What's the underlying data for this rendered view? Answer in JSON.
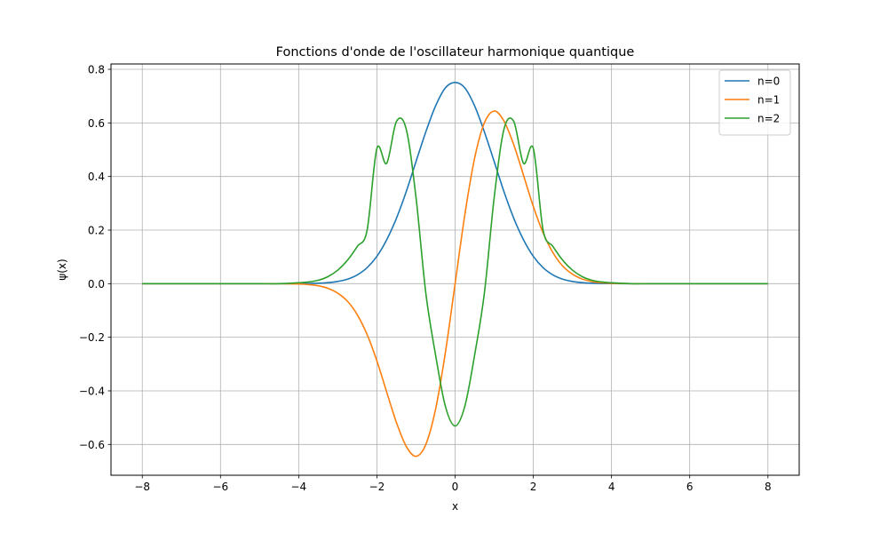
{
  "chart_data": {
    "type": "line",
    "title": "Fonctions d'onde de l'oscillateur harmonique quantique",
    "xlabel": "x",
    "ylabel": "ψ(x)",
    "xlim": [
      -8.8,
      8.8
    ],
    "ylim": [
      -0.715,
      0.82
    ],
    "xticks": [
      -8,
      -6,
      -4,
      -2,
      0,
      2,
      4,
      6,
      8
    ],
    "xtick_labels": [
      "−8",
      "−6",
      "−4",
      "−2",
      "0",
      "2",
      "4",
      "6",
      "8"
    ],
    "yticks": [
      -0.6,
      -0.4,
      -0.2,
      0.0,
      0.2,
      0.4,
      0.6,
      0.8
    ],
    "ytick_labels": [
      "−0.6",
      "−0.4",
      "−0.2",
      "0.0",
      "0.2",
      "0.4",
      "0.6",
      "0.8"
    ],
    "grid": true,
    "legend_position": "top-right",
    "x": [
      -8.0,
      -7.0,
      -6.0,
      -5.0,
      -4.5,
      -4.0,
      -3.75,
      -3.5,
      -3.25,
      -3.0,
      -2.75,
      -2.5,
      -2.25,
      -2.0,
      -1.75,
      -1.5,
      -1.25,
      -1.0,
      -0.75,
      -0.5,
      -0.25,
      0.0,
      0.25,
      0.5,
      0.75,
      1.0,
      1.25,
      1.5,
      1.75,
      2.0,
      2.25,
      2.5,
      2.75,
      3.0,
      3.25,
      3.5,
      3.75,
      4.0,
      4.5,
      5.0,
      6.0,
      7.0,
      8.0
    ],
    "series": [
      {
        "name": "n=0",
        "color": "#1f77b4",
        "values": [
          0.0,
          0.0,
          0.0,
          0.0,
          0.0,
          0.0003,
          0.0006,
          0.0016,
          0.0038,
          0.0084,
          0.017,
          0.0329,
          0.0597,
          0.1019,
          0.1634,
          0.2443,
          0.3434,
          0.4556,
          0.5661,
          0.6632,
          0.7306,
          0.7511,
          0.7306,
          0.6632,
          0.5661,
          0.4556,
          0.3434,
          0.2443,
          0.1634,
          0.1019,
          0.0597,
          0.0329,
          0.017,
          0.0084,
          0.0038,
          0.0016,
          0.0006,
          0.0003,
          0.0,
          0.0,
          0.0,
          0.0,
          0.0
        ]
      },
      {
        "name": "n=1",
        "color": "#ff7f0e",
        "values": [
          0.0,
          0.0,
          0.0,
          0.0,
          -0.0001,
          -0.0014,
          -0.0032,
          -0.0078,
          -0.0175,
          -0.0357,
          -0.0661,
          -0.1163,
          -0.19,
          -0.2882,
          -0.4044,
          -0.5183,
          -0.607,
          -0.6443,
          -0.6005,
          -0.469,
          -0.2583,
          0.0,
          0.2583,
          0.469,
          0.6005,
          0.6443,
          0.607,
          0.5183,
          0.4044,
          0.2882,
          0.19,
          0.1163,
          0.0661,
          0.0357,
          0.0175,
          0.0078,
          0.0032,
          0.0014,
          0.0001,
          0.0,
          0.0,
          0.0,
          0.0
        ]
      },
      {
        "name": "n=2",
        "color": "#2ca02c",
        "values": [
          0.0,
          0.0,
          0.0,
          0.0,
          0.0,
          0.0035,
          0.0062,
          0.0127,
          0.0264,
          0.0506,
          0.088,
          0.1395,
          0.1998,
          0.5045,
          0.449,
          0.6055,
          0.5765,
          0.3221,
          -0.0338,
          -0.2656,
          -0.4566,
          -0.5311,
          -0.4566,
          -0.2656,
          -0.0338,
          0.3221,
          0.5765,
          0.6055,
          0.449,
          0.5045,
          0.1998,
          0.1395,
          0.088,
          0.0506,
          0.0264,
          0.0127,
          0.0062,
          0.0035,
          0.0,
          0.0,
          0.0,
          0.0,
          0.0
        ]
      }
    ]
  }
}
